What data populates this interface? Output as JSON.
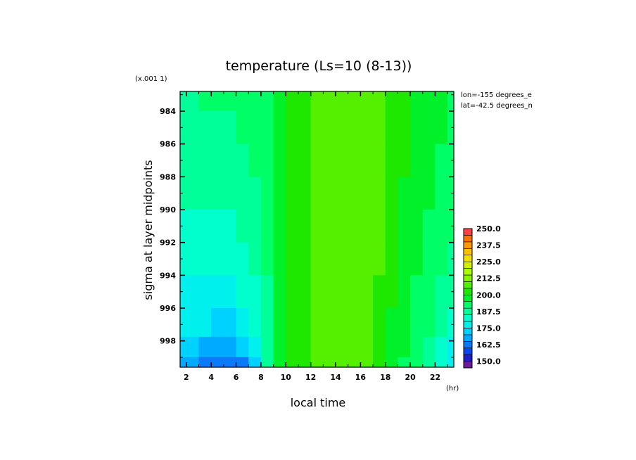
{
  "chart_data": {
    "type": "heatmap",
    "title": "temperature (Ls=10 (8-13))",
    "xlabel": "local time",
    "x_unit": "(hr)",
    "ylabel": "sigma at layer midpoints",
    "y_scale_note": "(x.001 1)",
    "xlim": [
      1.5,
      23.5
    ],
    "ylim": [
      982.8,
      999.6
    ],
    "y_inverted": true,
    "x_ticks": [
      2,
      4,
      6,
      8,
      10,
      12,
      14,
      16,
      18,
      20,
      22
    ],
    "x_tick_labels": [
      "2",
      "4",
      "6",
      "8",
      "10",
      "12",
      "14",
      "16",
      "18",
      "20",
      "22"
    ],
    "y_ticks": [
      984,
      986,
      988,
      990,
      992,
      994,
      996,
      998
    ],
    "y_tick_labels": [
      "984",
      "986",
      "988",
      "990",
      "992",
      "994",
      "996",
      "998"
    ],
    "x": [
      1.5,
      2.5,
      3.5,
      4.5,
      5.5,
      6.5,
      7.5,
      8.5,
      9.5,
      10.5,
      11.5,
      12.5,
      13.5,
      14.5,
      15.5,
      16.5,
      17.5,
      18.5,
      19.5,
      20.5,
      21.5,
      22.5,
      23.5
    ],
    "y": [
      983,
      985,
      987,
      989,
      991,
      993,
      995,
      997,
      998.5,
      999.5
    ],
    "z": [
      [
        189,
        189,
        190,
        190,
        190,
        190,
        191,
        194,
        199,
        202,
        203,
        206,
        208,
        208,
        208,
        208,
        206,
        203,
        201,
        199,
        197,
        195,
        193
      ],
      [
        188,
        188,
        189,
        189,
        189,
        190,
        191,
        194,
        199,
        202,
        203,
        206,
        208,
        208,
        208,
        208,
        206,
        202,
        200,
        198,
        197,
        195,
        193
      ],
      [
        186,
        186,
        187,
        187,
        187,
        188,
        190,
        193,
        198,
        201,
        203,
        206,
        208,
        208,
        208,
        208,
        205,
        202,
        200,
        198,
        196,
        194,
        192
      ],
      [
        185,
        185,
        185,
        186,
        186,
        187,
        189,
        192,
        198,
        201,
        203,
        206,
        208,
        208,
        208,
        208,
        205,
        202,
        199,
        197,
        195,
        193,
        191
      ],
      [
        183,
        183,
        184,
        184,
        184,
        185,
        188,
        191,
        197,
        201,
        203,
        206,
        208,
        208,
        208,
        208,
        205,
        201,
        199,
        196,
        194,
        192,
        190
      ],
      [
        181,
        181,
        182,
        182,
        182,
        183,
        186,
        190,
        196,
        200,
        203,
        206,
        208,
        208,
        208,
        207,
        205,
        201,
        198,
        195,
        193,
        191,
        188
      ],
      [
        179,
        179,
        179,
        179,
        179,
        180,
        183,
        189,
        196,
        200,
        203,
        206,
        208,
        208,
        208,
        207,
        204,
        200,
        197,
        194,
        192,
        189,
        186
      ],
      [
        175,
        175,
        175,
        174,
        174,
        176,
        180,
        188,
        195,
        200,
        203,
        206,
        208,
        208,
        208,
        207,
        204,
        199,
        196,
        193,
        190,
        187,
        183
      ],
      [
        172,
        170,
        169,
        168,
        167,
        170,
        177,
        187,
        195,
        200,
        203,
        206,
        208,
        208,
        208,
        207,
        203,
        199,
        195,
        192,
        188,
        184,
        179
      ],
      [
        168,
        165,
        163,
        161,
        160,
        164,
        174,
        186,
        195,
        200,
        203,
        206,
        208,
        208,
        208,
        207,
        203,
        198,
        194,
        190,
        186,
        181,
        176
      ]
    ],
    "annotations": [
      "lon=-155 degrees_e",
      "lat=-42.5 degrees_n"
    ],
    "colorbar": {
      "range": [
        145,
        250
      ],
      "step": 5,
      "tick_values": [
        150.0,
        162.5,
        175.0,
        187.5,
        200.0,
        212.5,
        225.0,
        237.5,
        250.0
      ],
      "tick_labels": [
        "150.0",
        "162.5",
        "175.0",
        "187.5",
        "200.0",
        "212.5",
        "225.0",
        "237.5",
        "250.0"
      ],
      "colors": [
        "#6a1a9a",
        "#1e1ec8",
        "#0a46f0",
        "#0a7af8",
        "#00aaff",
        "#00d2ff",
        "#00f0ee",
        "#00ffcc",
        "#00ff99",
        "#00ff66",
        "#00f02a",
        "#1ee800",
        "#55f000",
        "#88f500",
        "#aaff00",
        "#d2f000",
        "#f0e000",
        "#ffc000",
        "#ff9a00",
        "#ff7000",
        "#ff4040"
      ]
    }
  }
}
